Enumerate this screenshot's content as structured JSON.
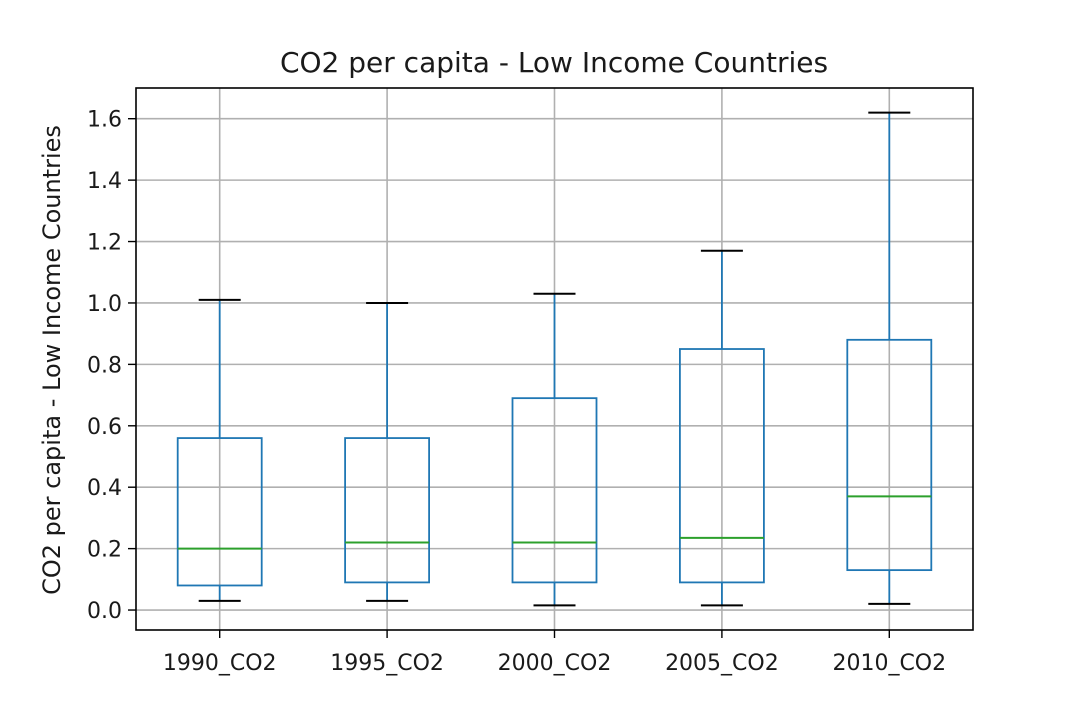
{
  "chart_data": {
    "type": "box",
    "title": "CO2 per capita - Low Income Countries",
    "xlabel": "",
    "ylabel": "CO2 per capita - Low Income Countries",
    "ylim": [
      -0.065,
      1.7
    ],
    "yticks": [
      "0.0",
      "0.2",
      "0.4",
      "0.6",
      "0.8",
      "1.0",
      "1.2",
      "1.4",
      "1.6"
    ],
    "ytick_values": [
      0.0,
      0.2,
      0.4,
      0.6,
      0.8,
      1.0,
      1.2,
      1.4,
      1.6
    ],
    "grid": true,
    "categories": [
      "1990_CO2",
      "1995_CO2",
      "2000_CO2",
      "2005_CO2",
      "2010_CO2"
    ],
    "boxes": [
      {
        "category": "1990_CO2",
        "whisker_low": 0.03,
        "q1": 0.08,
        "median": 0.2,
        "q3": 0.56,
        "whisker_high": 1.01
      },
      {
        "category": "1995_CO2",
        "whisker_low": 0.03,
        "q1": 0.09,
        "median": 0.22,
        "q3": 0.56,
        "whisker_high": 1.0
      },
      {
        "category": "2000_CO2",
        "whisker_low": 0.015,
        "q1": 0.09,
        "median": 0.22,
        "q3": 0.69,
        "whisker_high": 1.03
      },
      {
        "category": "2005_CO2",
        "whisker_low": 0.015,
        "q1": 0.09,
        "median": 0.235,
        "q3": 0.85,
        "whisker_high": 1.17
      },
      {
        "category": "2010_CO2",
        "whisker_low": 0.02,
        "q1": 0.13,
        "median": 0.37,
        "q3": 0.88,
        "whisker_high": 1.62
      }
    ],
    "colors": {
      "box": "#1f77b4",
      "median": "#2ca02c",
      "cap": "#000000",
      "grid": "#b0b0b0",
      "frame": "#000000"
    }
  }
}
